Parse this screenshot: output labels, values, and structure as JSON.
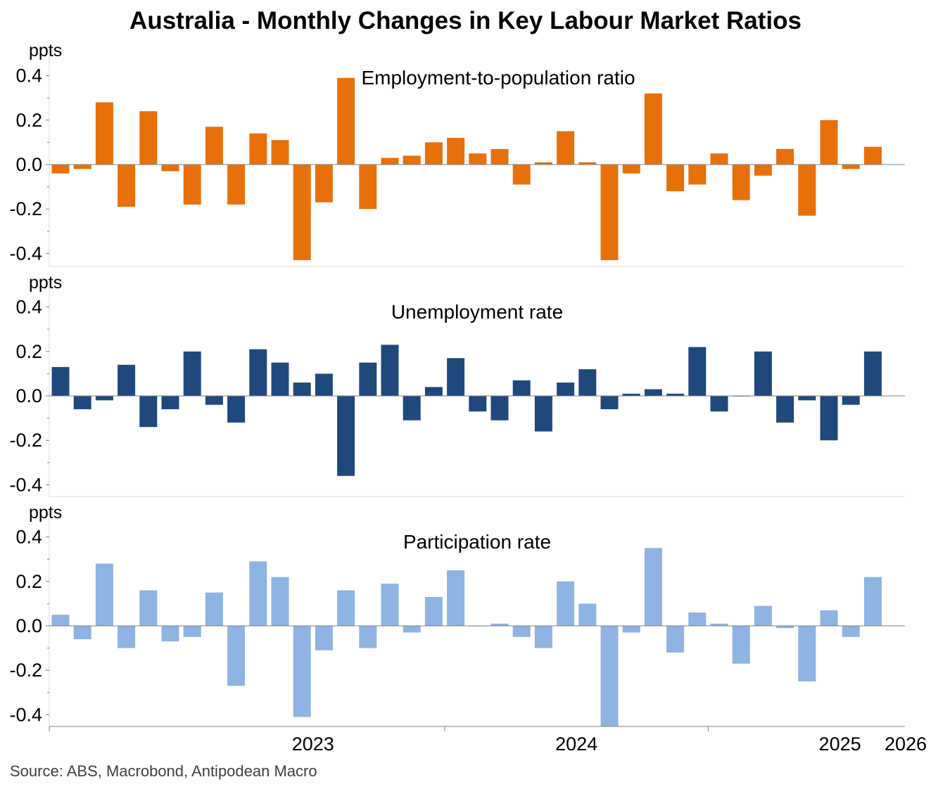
{
  "title": "Australia - Monthly Changes in Key Labour Market Ratios",
  "source": "Source: ABS, Macrobond, Antipodean Macro",
  "colors": {
    "employment": "#E8700A",
    "unemployment": "#1F497D",
    "participation": "#8DB4E2",
    "axis": "#808080",
    "panel_border": "#d9d9d9"
  },
  "x_axis": {
    "tick_labels": [
      "2023",
      "2024",
      "2025",
      "2026"
    ]
  },
  "chart_data": [
    {
      "type": "bar",
      "title": "Employment-to-population ratio",
      "ylabel": "ppts",
      "ylim": [
        -0.45,
        0.45
      ],
      "yticks": [
        "0.4",
        "0.2",
        "0.0",
        "-0.2",
        "-0.4"
      ],
      "start": "2022-07",
      "values": [
        -0.04,
        -0.02,
        0.28,
        -0.19,
        0.24,
        -0.03,
        -0.18,
        0.17,
        -0.18,
        0.14,
        0.11,
        -0.43,
        -0.17,
        0.39,
        -0.2,
        0.03,
        0.04,
        0.1,
        0.12,
        0.05,
        0.07,
        -0.09,
        0.01,
        0.15,
        0.01,
        -0.43,
        -0.04,
        0.32,
        -0.12,
        -0.09,
        0.05,
        -0.16,
        -0.05,
        0.07,
        -0.23,
        0.2,
        -0.02,
        0.08
      ]
    },
    {
      "type": "bar",
      "title": "Unemployment rate",
      "ylabel": "ppts",
      "ylim": [
        -0.45,
        0.45
      ],
      "yticks": [
        "0.4",
        "0.2",
        "0.0",
        "-0.2",
        "-0.4"
      ],
      "start": "2022-07",
      "values": [
        0.13,
        -0.06,
        -0.02,
        0.14,
        -0.14,
        -0.06,
        0.2,
        -0.04,
        -0.12,
        0.21,
        0.15,
        0.06,
        0.1,
        -0.36,
        0.15,
        0.23,
        -0.11,
        0.04,
        0.17,
        -0.07,
        -0.11,
        0.07,
        -0.16,
        0.06,
        0.12,
        -0.06,
        0.01,
        0.03,
        0.01,
        0.22,
        -0.07,
        0.0,
        0.2,
        -0.12,
        -0.02,
        -0.2,
        -0.04,
        0.2
      ]
    },
    {
      "type": "bar",
      "title": "Participation rate",
      "ylabel": "ppts",
      "ylim": [
        -0.45,
        0.45
      ],
      "yticks": [
        "0.4",
        "0.2",
        "0.0",
        "-0.2",
        "-0.4"
      ],
      "start": "2022-07",
      "values": [
        0.05,
        -0.06,
        0.28,
        -0.1,
        0.16,
        -0.07,
        -0.05,
        0.15,
        -0.27,
        0.29,
        0.22,
        -0.41,
        -0.11,
        0.16,
        -0.1,
        0.19,
        -0.03,
        0.13,
        0.25,
        0.0,
        0.01,
        -0.05,
        -0.1,
        0.2,
        0.1,
        -0.46,
        -0.03,
        0.35,
        -0.12,
        0.06,
        0.01,
        -0.17,
        0.09,
        -0.01,
        -0.25,
        0.07,
        -0.05,
        0.22
      ]
    }
  ]
}
